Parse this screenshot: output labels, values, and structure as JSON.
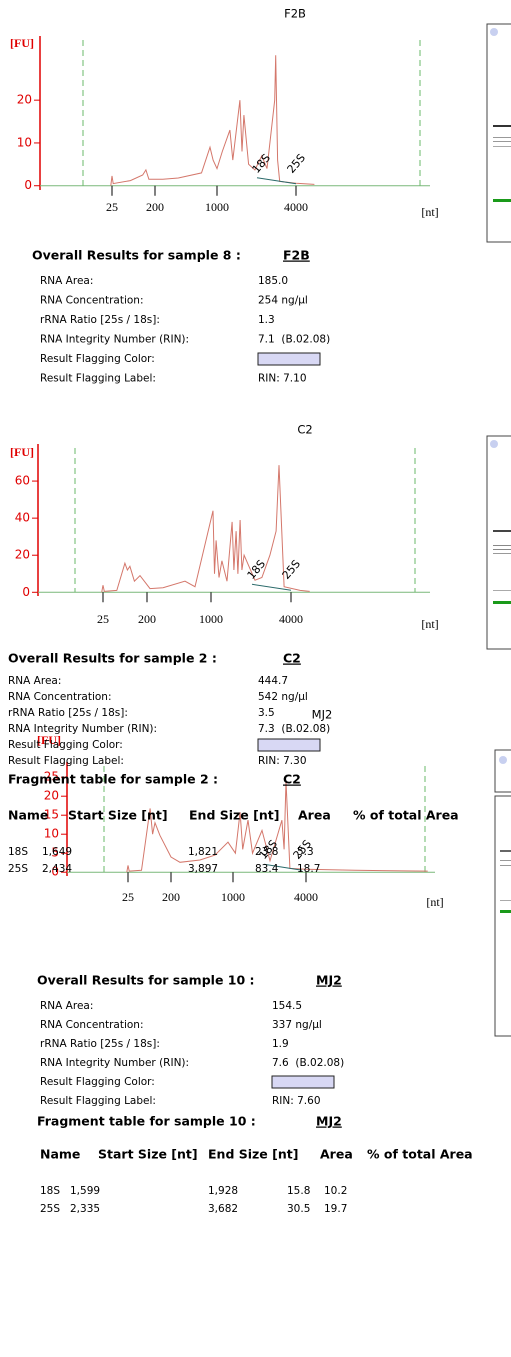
{
  "chart_data": [
    {
      "type": "line",
      "title": "F2B",
      "ylabel": "[FU]",
      "xlabel": "[nt]",
      "x": [
        20,
        25,
        30,
        100,
        150,
        163,
        175,
        300,
        500,
        800,
        910,
        950,
        1000,
        1200,
        1490,
        1600,
        1870,
        1950,
        2020,
        2200,
        2440,
        2700,
        2900,
        3190,
        3230,
        3300,
        3380,
        4000,
        4700
      ],
      "series": [
        {
          "color": "#d4776b",
          "values": [
            0,
            2.3,
            0.5,
            1.2,
            2.5,
            3.7,
            1.5,
            1.5,
            1.8,
            3,
            9,
            6,
            4,
            8,
            13,
            6,
            20,
            8,
            16.5,
            5,
            3.7,
            7,
            4,
            20,
            30.5,
            6,
            1,
            0.6,
            0.3
          ]
        }
      ],
      "annotations": [
        "18S",
        "25S"
      ],
      "ylim": [
        -1,
        35
      ],
      "yticks": [
        0,
        10,
        20
      ],
      "xticks": [
        25,
        200,
        1000,
        4000
      ]
    },
    {
      "type": "line",
      "title": "C2",
      "ylabel": "[FU]",
      "xlabel": "[nt]",
      "x": [
        20,
        25,
        30,
        80,
        112,
        122,
        132,
        150,
        172,
        237,
        400,
        675,
        800,
        1075,
        1130,
        1190,
        1300,
        1410,
        1600,
        1790,
        1860,
        1940,
        2010,
        2090,
        2160,
        2240,
        2650,
        2910,
        3210,
        3440,
        3550,
        3740,
        4340,
        4700
      ],
      "series": [
        {
          "color": "#d4776b",
          "values": [
            0,
            3.8,
            0.5,
            1,
            15.7,
            12,
            14,
            6,
            9,
            2,
            2.5,
            6,
            3,
            44,
            10,
            28,
            8,
            17,
            6,
            38,
            12,
            33,
            10,
            39,
            12,
            20,
            6.5,
            8,
            20,
            33,
            68.6,
            3,
            1,
            0.5
          ]
        }
      ],
      "annotations": [
        "18S",
        "25S"
      ],
      "ylim": [
        -2,
        80
      ],
      "yticks": [
        0,
        20,
        40,
        60
      ],
      "xticks": [
        25,
        200,
        1000,
        4000
      ]
    },
    {
      "type": "line",
      "title": "MJ2",
      "ylabel": "[FU]",
      "xlabel": "[nt]",
      "x": [
        20,
        25,
        30,
        80,
        115,
        125,
        135,
        155,
        200,
        316,
        574,
        768,
        935,
        1100,
        1290,
        1400,
        1616,
        1800,
        2190,
        2520,
        3010,
        3100,
        3180,
        3340,
        4000,
        6000,
        9000
      ],
      "series": [
        {
          "color": "#d4776b",
          "values": [
            0,
            1.8,
            0.3,
            0.5,
            16.8,
            10,
            13,
            9.7,
            4,
            2.6,
            3.2,
            4.5,
            7.9,
            5,
            15.8,
            6,
            13.7,
            5,
            11,
            3,
            13.7,
            6,
            24,
            1,
            0.8,
            0.5,
            0.3
          ]
        }
      ],
      "annotations": [
        "18S",
        "25S"
      ],
      "ylim": [
        -1,
        29
      ],
      "yticks": [
        0,
        5,
        10,
        15,
        20,
        25
      ],
      "xticks": [
        25,
        200,
        1000,
        4000
      ]
    }
  ],
  "results": [
    {
      "heading": "Overall Results for sample 8 :",
      "sample": "F2B",
      "rows": [
        {
          "label": "RNA Area:",
          "value": "185.0"
        },
        {
          "label": "RNA Concentration:",
          "value": "254 ng/µl"
        },
        {
          "label": "rRNA Ratio [25s / 18s]:",
          "value": "1.3"
        },
        {
          "label": "RNA Integrity Number (RIN):",
          "value": "7.1  (B.02.08)"
        },
        {
          "label": "Result Flagging Color:",
          "color": "#d8d8f4"
        },
        {
          "label": "Result Flagging Label:",
          "value": "RIN: 7.10"
        }
      ]
    },
    {
      "heading": "Overall Results for sample 2 :",
      "sample": "C2",
      "rows": [
        {
          "label": "RNA Area:",
          "value": "444.7"
        },
        {
          "label": "RNA Concentration:",
          "value": "542 ng/µl"
        },
        {
          "label": "rRNA Ratio [25s / 18s]:",
          "value": "3.5"
        },
        {
          "label": "RNA Integrity Number (RIN):",
          "value": "7.3  (B.02.08)"
        },
        {
          "label": "Result Flagging Color:",
          "color": "#d8d8f4"
        },
        {
          "label": "Result Flagging Label:",
          "value": "RIN: 7.30"
        }
      ],
      "fragment": {
        "heading": "Fragment table for sample 2 :",
        "sample": "C2",
        "columns": [
          "Name",
          "Start Size [nt]",
          "End Size [nt]",
          "Area",
          "% of total Area"
        ],
        "rows": [
          [
            "18S",
            "1,649",
            "1,821",
            "23.8",
            "5.3"
          ],
          [
            "25S",
            "2,434",
            "3,897",
            "83.4",
            "18.7"
          ]
        ]
      }
    },
    {
      "heading": "Overall Results for sample 10 :",
      "sample": "MJ2",
      "rows": [
        {
          "label": "RNA Area:",
          "value": "154.5"
        },
        {
          "label": "RNA Concentration:",
          "value": "337 ng/µl"
        },
        {
          "label": "rRNA Ratio [25s / 18s]:",
          "value": "1.9"
        },
        {
          "label": "RNA Integrity Number (RIN):",
          "value": "7.6  (B.02.08)"
        },
        {
          "label": "Result Flagging Color:",
          "color": "#d8d8f4"
        },
        {
          "label": "Result Flagging Label:",
          "value": "RIN: 7.60"
        }
      ],
      "fragment": {
        "heading": "Fragment table for sample 10 :",
        "sample": "MJ2",
        "columns": [
          "Name",
          "Start Size [nt]",
          "End Size [nt]",
          "Area",
          "% of total Area"
        ],
        "rows": [
          [
            "18S",
            "1,599",
            "1,928",
            "15.8",
            "10.2"
          ],
          [
            "25S",
            "2,335",
            "3,682",
            "30.5",
            "19.7"
          ]
        ]
      }
    }
  ]
}
